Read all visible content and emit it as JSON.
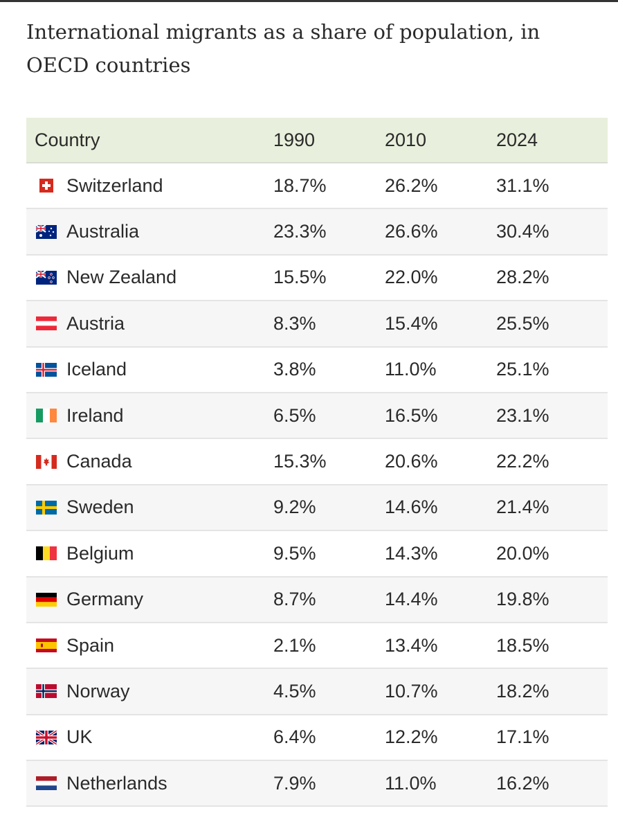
{
  "page": {
    "title": "International migrants as a share of population, in OECD countries"
  },
  "chart_data": {
    "type": "table",
    "columns": [
      "Country",
      "1990",
      "2010",
      "2024"
    ],
    "rows": [
      {
        "country": "Switzerland",
        "flag": "switzerland-flag",
        "v1990": "18.7%",
        "v2010": "26.2%",
        "v2024": "31.1%"
      },
      {
        "country": "Australia",
        "flag": "australia-flag",
        "v1990": "23.3%",
        "v2010": "26.6%",
        "v2024": "30.4%"
      },
      {
        "country": "New Zealand",
        "flag": "new-zealand-flag",
        "v1990": "15.5%",
        "v2010": "22.0%",
        "v2024": "28.2%"
      },
      {
        "country": "Austria",
        "flag": "austria-flag",
        "v1990": "8.3%",
        "v2010": "15.4%",
        "v2024": "25.5%"
      },
      {
        "country": "Iceland",
        "flag": "iceland-flag",
        "v1990": "3.8%",
        "v2010": "11.0%",
        "v2024": "25.1%"
      },
      {
        "country": "Ireland",
        "flag": "ireland-flag",
        "v1990": "6.5%",
        "v2010": "16.5%",
        "v2024": "23.1%"
      },
      {
        "country": "Canada",
        "flag": "canada-flag",
        "v1990": "15.3%",
        "v2010": "20.6%",
        "v2024": "22.2%"
      },
      {
        "country": "Sweden",
        "flag": "sweden-flag",
        "v1990": "9.2%",
        "v2010": "14.6%",
        "v2024": "21.4%"
      },
      {
        "country": "Belgium",
        "flag": "belgium-flag",
        "v1990": "9.5%",
        "v2010": "14.3%",
        "v2024": "20.0%"
      },
      {
        "country": "Germany",
        "flag": "germany-flag",
        "v1990": "8.7%",
        "v2010": "14.4%",
        "v2024": "19.8%"
      },
      {
        "country": "Spain",
        "flag": "spain-flag",
        "v1990": "2.1%",
        "v2010": "13.4%",
        "v2024": "18.5%"
      },
      {
        "country": "Norway",
        "flag": "norway-flag",
        "v1990": "4.5%",
        "v2010": "10.7%",
        "v2024": "18.2%"
      },
      {
        "country": "UK",
        "flag": "uk-flag",
        "v1990": "6.4%",
        "v2010": "12.2%",
        "v2024": "17.1%"
      },
      {
        "country": "Netherlands",
        "flag": "netherlands-flag",
        "v1990": "7.9%",
        "v2010": "11.0%",
        "v2024": "16.2%"
      }
    ]
  },
  "colors": {
    "header_bg": "#e8efdc",
    "stripe_bg": "#f6f6f6",
    "text": "#2a2a2a"
  }
}
